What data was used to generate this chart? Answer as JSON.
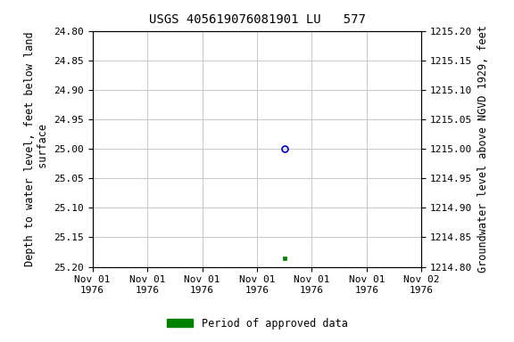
{
  "title": "USGS 405619076081901 LU   577",
  "ylabel_left": "Depth to water level, feet below land\n surface",
  "ylabel_right": "Groundwater level above NGVD 1929, feet",
  "ylim_left_top": 24.8,
  "ylim_left_bottom": 25.2,
  "ylim_right_top": 1215.2,
  "ylim_right_bottom": 1214.8,
  "yticks_left": [
    24.8,
    24.85,
    24.9,
    24.95,
    25.0,
    25.05,
    25.1,
    25.15,
    25.2
  ],
  "yticks_right": [
    1214.8,
    1214.85,
    1214.9,
    1214.95,
    1215.0,
    1215.05,
    1215.1,
    1215.15,
    1215.2
  ],
  "data_blue_x": 3.5,
  "data_blue_y": 25.0,
  "data_green_x": 3.5,
  "data_green_y": 25.185,
  "x_start": 0.0,
  "x_end": 6.0,
  "xtick_positions": [
    0,
    1,
    2,
    3,
    4,
    5,
    6
  ],
  "xtick_labels": [
    "Nov 01\n1976",
    "Nov 01\n1976",
    "Nov 01\n1976",
    "Nov 01\n1976",
    "Nov 01\n1976",
    "Nov 01\n1976",
    "Nov 02\n1976"
  ],
  "grid_color": "#c8c8c8",
  "background_color": "#ffffff",
  "blue_marker_color": "#0000cc",
  "green_marker_color": "#008000",
  "legend_label": "Period of approved data",
  "title_fontsize": 10,
  "axis_label_fontsize": 8.5,
  "tick_fontsize": 8
}
